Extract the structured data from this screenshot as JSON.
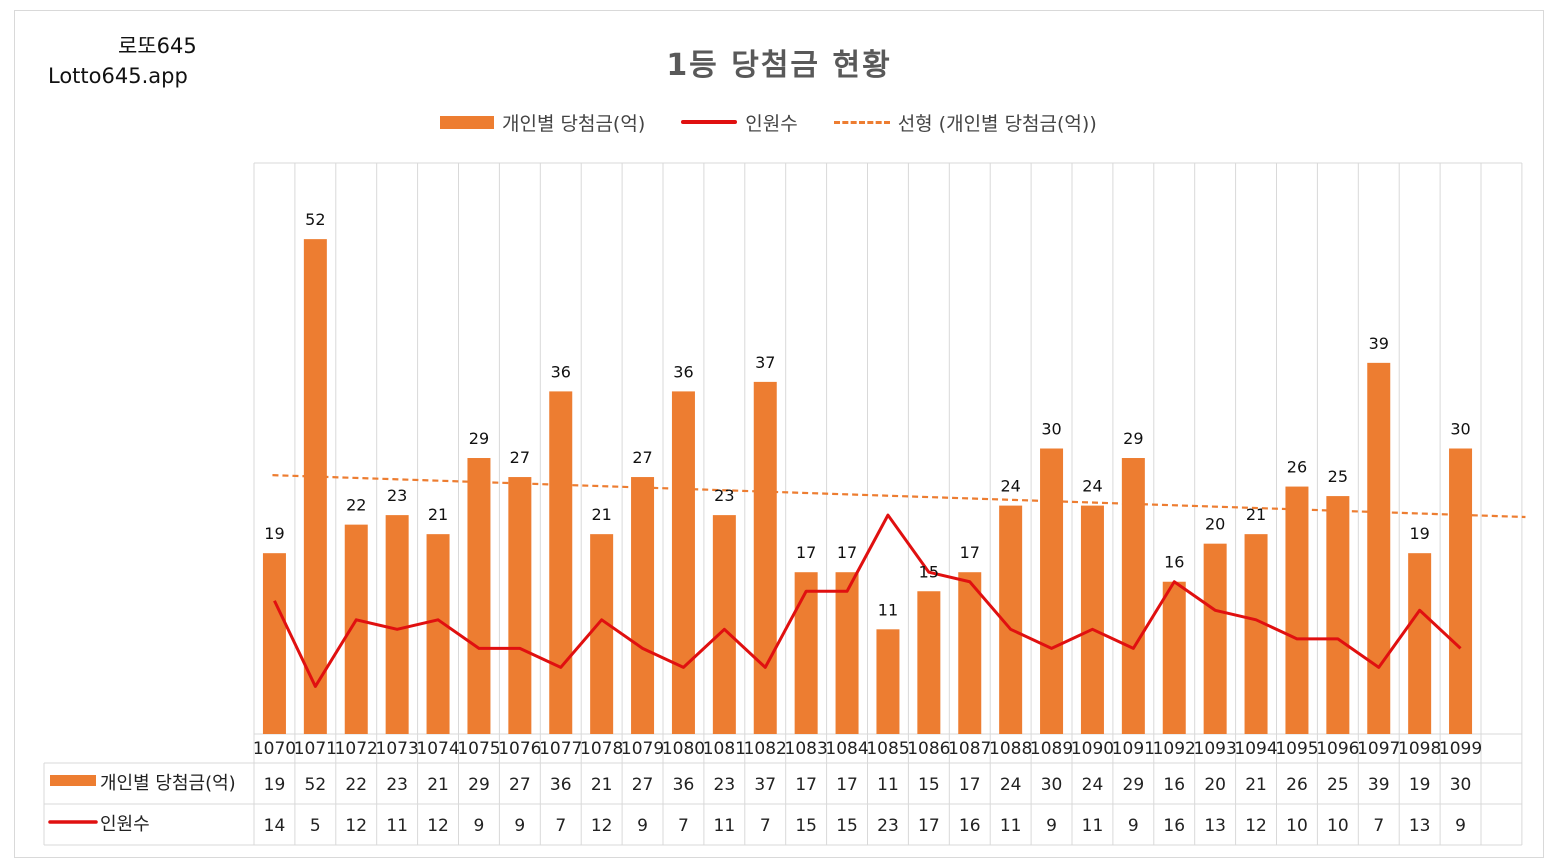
{
  "brand": {
    "name_ko": "로또645",
    "name_en": "Lotto645.app"
  },
  "chart_data": {
    "type": "bar",
    "title": "1등 당첨금 현황",
    "legend": [
      "개인별 당첨금(억)",
      "인원수",
      "선형 (개인별 당첨금(억))"
    ],
    "legend_position": "top",
    "categories": [
      "1070",
      "1071",
      "1072",
      "1073",
      "1074",
      "1075",
      "1076",
      "1077",
      "1078",
      "1079",
      "1080",
      "1081",
      "1082",
      "1083",
      "1084",
      "1085",
      "1086",
      "1087",
      "1088",
      "1089",
      "1090",
      "1091",
      "1092",
      "1093",
      "1094",
      "1095",
      "1096",
      "1097",
      "1098",
      "1099"
    ],
    "series": [
      {
        "name": "개인별 당첨금(억)",
        "type": "bar",
        "color": "#ED7D31",
        "values": [
          19,
          52,
          22,
          23,
          21,
          29,
          27,
          36,
          21,
          27,
          36,
          23,
          37,
          17,
          17,
          11,
          15,
          17,
          24,
          30,
          24,
          29,
          16,
          20,
          21,
          26,
          25,
          39,
          19,
          30
        ]
      },
      {
        "name": "인원수",
        "type": "line",
        "color": "#E01010",
        "values": [
          14,
          5,
          12,
          11,
          12,
          9,
          9,
          7,
          12,
          9,
          7,
          11,
          7,
          15,
          15,
          23,
          17,
          16,
          11,
          9,
          11,
          9,
          16,
          13,
          12,
          10,
          10,
          7,
          13,
          9
        ]
      },
      {
        "name": "선형 (개인별 당첨금(억))",
        "type": "trendline",
        "color": "#ED7D31",
        "style": "dashed",
        "start": 27.2,
        "end": 22.8
      }
    ],
    "ylim": [
      0,
      60
    ],
    "grid": "vertical",
    "data_table": true
  }
}
